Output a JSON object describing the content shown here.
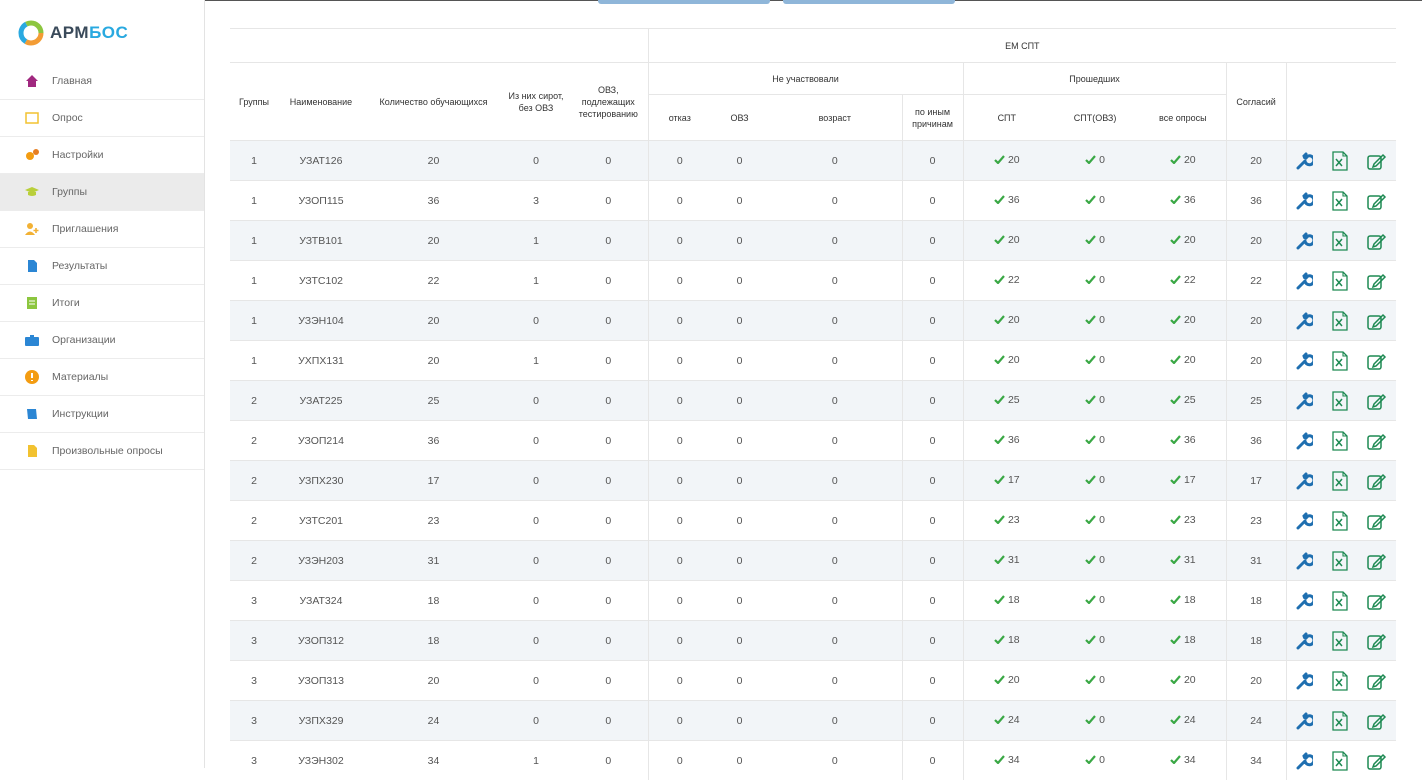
{
  "sidebar": {
    "logo": {
      "part1": "АРМ",
      "part2": "БОС"
    },
    "menu": [
      "Главная",
      "Опрос",
      "Настройки",
      "Группы",
      "Приглашения",
      "Результаты",
      "Итоги",
      "Организации",
      "Материалы",
      "Инструкции",
      "Произвольные опросы"
    ],
    "active": 3
  },
  "table": {
    "headers": {
      "em_spt": "ЕМ СПТ",
      "groups": "Группы",
      "name": "Наименование",
      "count": "Количество обучающихся",
      "orphans": "Из них сирот, без ОВЗ",
      "ovz_testing": "ОВЗ, подлежащих тестированию",
      "not_participated": "Не участвовали",
      "passed": "Прошедших",
      "consents": "Согласий",
      "refusal": "отказ",
      "ovz": "ОВЗ",
      "age": "возраст",
      "other": "по иным причинам",
      "spt": "СПТ",
      "spt_ovz": "СПТ(ОВЗ)",
      "all_surveys": "все опросы"
    },
    "rows": [
      [
        1,
        "УЗАТ126",
        20,
        0,
        0,
        0,
        0,
        0,
        0,
        20,
        0,
        20,
        20
      ],
      [
        1,
        "УЗОП115",
        36,
        3,
        0,
        0,
        0,
        0,
        0,
        36,
        0,
        36,
        36
      ],
      [
        1,
        "УЗТВ101",
        20,
        1,
        0,
        0,
        0,
        0,
        0,
        20,
        0,
        20,
        20
      ],
      [
        1,
        "УЗТС102",
        22,
        1,
        0,
        0,
        0,
        0,
        0,
        22,
        0,
        22,
        22
      ],
      [
        1,
        "УЗЭН104",
        20,
        0,
        0,
        0,
        0,
        0,
        0,
        20,
        0,
        20,
        20
      ],
      [
        1,
        "УХПХ131",
        20,
        1,
        0,
        0,
        0,
        0,
        0,
        20,
        0,
        20,
        20
      ],
      [
        2,
        "УЗАТ225",
        25,
        0,
        0,
        0,
        0,
        0,
        0,
        25,
        0,
        25,
        25
      ],
      [
        2,
        "УЗОП214",
        36,
        0,
        0,
        0,
        0,
        0,
        0,
        36,
        0,
        36,
        36
      ],
      [
        2,
        "УЗПХ230",
        17,
        0,
        0,
        0,
        0,
        0,
        0,
        17,
        0,
        17,
        17
      ],
      [
        2,
        "УЗТС201",
        23,
        0,
        0,
        0,
        0,
        0,
        0,
        23,
        0,
        23,
        23
      ],
      [
        2,
        "УЗЭН203",
        31,
        0,
        0,
        0,
        0,
        0,
        0,
        31,
        0,
        31,
        31
      ],
      [
        3,
        "УЗАТ324",
        18,
        0,
        0,
        0,
        0,
        0,
        0,
        18,
        0,
        18,
        18
      ],
      [
        3,
        "УЗОП312",
        18,
        0,
        0,
        0,
        0,
        0,
        0,
        18,
        0,
        18,
        18
      ],
      [
        3,
        "УЗОП313",
        20,
        0,
        0,
        0,
        0,
        0,
        0,
        20,
        0,
        20,
        20
      ],
      [
        3,
        "УЗПХ329",
        24,
        0,
        0,
        0,
        0,
        0,
        0,
        24,
        0,
        24,
        24
      ],
      [
        3,
        "УЗЭН302",
        34,
        1,
        0,
        0,
        0,
        0,
        0,
        34,
        0,
        34,
        34
      ]
    ]
  }
}
